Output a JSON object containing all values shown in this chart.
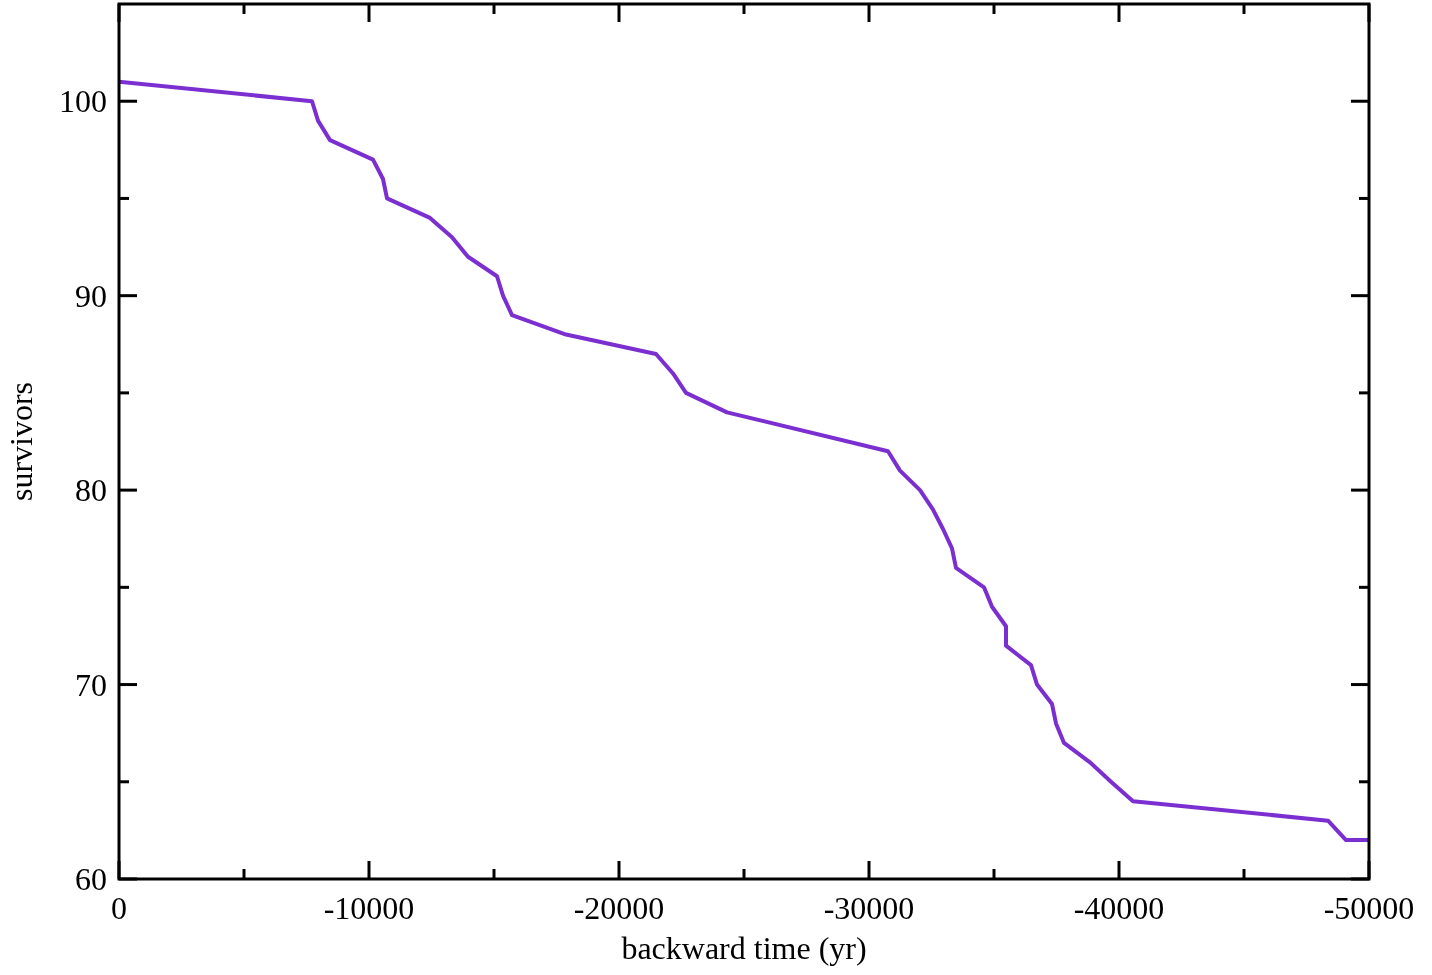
{
  "chart_data": {
    "type": "line",
    "xlabel": "backward time (yr)",
    "ylabel": "survivors",
    "xlim": [
      0,
      -50000
    ],
    "ylim": [
      60,
      105
    ],
    "xticks": [
      0,
      {
        "value": -5000,
        "label": null
      },
      -10000,
      {
        "value": -15000,
        "label": null
      },
      -20000,
      {
        "value": -25000,
        "label": null
      },
      -30000,
      {
        "value": -35000,
        "label": null
      },
      -40000,
      {
        "value": -45000,
        "label": null
      },
      -50000
    ],
    "yticks": [
      60,
      {
        "value": 65,
        "label": null
      },
      70,
      {
        "value": 75,
        "label": null
      },
      80,
      {
        "value": 85,
        "label": null
      },
      90,
      {
        "value": 95,
        "label": null
      },
      100
    ],
    "grid": false,
    "marker": "none",
    "line_style": "solid",
    "series": [
      {
        "color": "#7b2fd0",
        "x": [
          0,
          -7720,
          -7960,
          -8440,
          -10160,
          -10560,
          -10720,
          -12440,
          -13320,
          -13960,
          -15120,
          -15360,
          -15720,
          -17880,
          -21480,
          -22160,
          -22680,
          -24320,
          -30760,
          -31240,
          -32040,
          -32560,
          -32960,
          -33320,
          -33480,
          -34600,
          -34920,
          -35480,
          -35480,
          -36480,
          -36720,
          -37320,
          -37480,
          -37800,
          -38840,
          -39680,
          -40560,
          -48360,
          -49080,
          -50000
        ],
        "values": [
          101,
          100,
          99,
          98,
          97,
          96,
          95,
          94,
          93,
          92,
          91,
          90,
          89,
          88,
          87,
          86,
          85,
          84,
          82,
          81,
          80,
          79,
          78,
          77,
          76,
          75,
          74,
          73,
          72,
          71,
          70,
          69,
          68,
          67,
          66,
          65,
          64,
          63,
          62,
          62
        ]
      }
    ]
  }
}
